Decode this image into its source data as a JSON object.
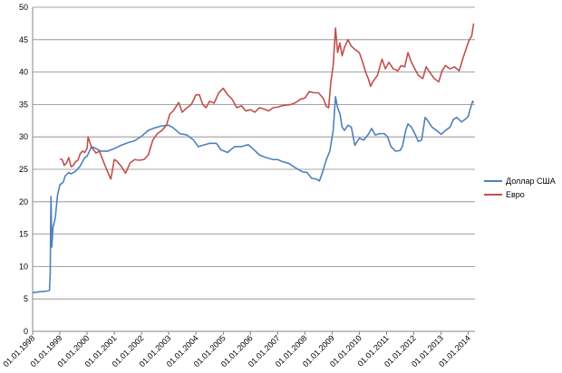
{
  "chart_data": {
    "type": "line",
    "title": "",
    "xlabel": "",
    "ylabel": "",
    "ylim": [
      0,
      50
    ],
    "yticks": [
      0,
      5,
      10,
      15,
      20,
      25,
      30,
      35,
      40,
      45,
      50
    ],
    "xlim": [
      "1998-01-01",
      "2014-04-01"
    ],
    "xtick_labels": [
      "01.01.1998",
      "01.01.1999",
      "01.01.2000",
      "01.01.2001",
      "01.01.2002",
      "01.01.2003",
      "01.01.2004",
      "01.01.2005",
      "01.01.2006",
      "01.01.2007",
      "01.01.2008",
      "01.01.2009",
      "01.01.2010",
      "01.01.2011",
      "01.01.2012",
      "01.01.2013",
      "01.01.2014"
    ],
    "grid": "horizontal major",
    "legend_position": "right",
    "series": [
      {
        "name": "Доллар США",
        "color": "#4f81bd",
        "points": [
          [
            "1998-01-01",
            5.96
          ],
          [
            "1998-04-01",
            6.1
          ],
          [
            "1998-07-01",
            6.2
          ],
          [
            "1998-08-15",
            6.3
          ],
          [
            "1998-08-25",
            9.0
          ],
          [
            "1998-08-31",
            17.0
          ],
          [
            "1998-09-05",
            20.8
          ],
          [
            "1998-09-15",
            13.0
          ],
          [
            "1998-10-01",
            16.0
          ],
          [
            "1998-11-01",
            17.5
          ],
          [
            "1998-12-01",
            21.0
          ],
          [
            "1999-01-01",
            22.6
          ],
          [
            "1999-02-15",
            23.0
          ],
          [
            "1999-03-15",
            24.0
          ],
          [
            "1999-05-01",
            24.5
          ],
          [
            "1999-06-01",
            24.3
          ],
          [
            "1999-08-01",
            24.7
          ],
          [
            "1999-10-01",
            25.5
          ],
          [
            "1999-12-01",
            26.8
          ],
          [
            "2000-01-01",
            27.0
          ],
          [
            "2000-03-01",
            28.5
          ],
          [
            "2000-05-01",
            28.2
          ],
          [
            "2000-07-01",
            27.8
          ],
          [
            "2000-10-01",
            27.8
          ],
          [
            "2001-01-01",
            28.2
          ],
          [
            "2001-04-01",
            28.7
          ],
          [
            "2001-07-01",
            29.1
          ],
          [
            "2001-10-01",
            29.4
          ],
          [
            "2002-01-01",
            30.1
          ],
          [
            "2002-04-01",
            31.0
          ],
          [
            "2002-07-01",
            31.4
          ],
          [
            "2002-10-01",
            31.7
          ],
          [
            "2003-01-01",
            31.8
          ],
          [
            "2003-03-01",
            31.4
          ],
          [
            "2003-06-01",
            30.5
          ],
          [
            "2003-09-01",
            30.3
          ],
          [
            "2003-12-01",
            29.5
          ],
          [
            "2004-02-01",
            28.5
          ],
          [
            "2004-04-01",
            28.7
          ],
          [
            "2004-07-01",
            29.0
          ],
          [
            "2004-10-01",
            29.0
          ],
          [
            "2004-12-01",
            28.0
          ],
          [
            "2005-03-01",
            27.6
          ],
          [
            "2005-06-01",
            28.5
          ],
          [
            "2005-09-01",
            28.5
          ],
          [
            "2005-12-01",
            28.8
          ],
          [
            "2006-02-01",
            28.2
          ],
          [
            "2006-05-01",
            27.2
          ],
          [
            "2006-08-01",
            26.8
          ],
          [
            "2006-11-01",
            26.5
          ],
          [
            "2007-01-01",
            26.5
          ],
          [
            "2007-03-01",
            26.2
          ],
          [
            "2007-06-01",
            25.9
          ],
          [
            "2007-09-01",
            25.2
          ],
          [
            "2007-12-01",
            24.6
          ],
          [
            "2008-02-01",
            24.5
          ],
          [
            "2008-04-01",
            23.6
          ],
          [
            "2008-06-01",
            23.5
          ],
          [
            "2008-07-15",
            23.2
          ],
          [
            "2008-09-01",
            24.8
          ],
          [
            "2008-10-15",
            26.5
          ],
          [
            "2008-12-01",
            27.8
          ],
          [
            "2009-01-15",
            31.0
          ],
          [
            "2009-02-15",
            36.2
          ],
          [
            "2009-03-15",
            34.5
          ],
          [
            "2009-04-15",
            33.6
          ],
          [
            "2009-05-15",
            31.5
          ],
          [
            "2009-06-15",
            31.0
          ],
          [
            "2009-08-01",
            31.8
          ],
          [
            "2009-09-15",
            31.5
          ],
          [
            "2009-11-01",
            28.7
          ],
          [
            "2010-01-01",
            29.8
          ],
          [
            "2010-03-01",
            29.5
          ],
          [
            "2010-05-01",
            30.4
          ],
          [
            "2010-06-15",
            31.3
          ],
          [
            "2010-08-01",
            30.3
          ],
          [
            "2010-10-01",
            30.5
          ],
          [
            "2010-12-01",
            30.5
          ],
          [
            "2011-01-15",
            30.0
          ],
          [
            "2011-03-01",
            28.5
          ],
          [
            "2011-05-01",
            27.8
          ],
          [
            "2011-07-01",
            27.9
          ],
          [
            "2011-08-01",
            28.5
          ],
          [
            "2011-09-15",
            31.0
          ],
          [
            "2011-10-15",
            32.0
          ],
          [
            "2011-12-01",
            31.5
          ],
          [
            "2012-01-15",
            30.5
          ],
          [
            "2012-03-01",
            29.3
          ],
          [
            "2012-04-15",
            29.5
          ],
          [
            "2012-06-01",
            33.0
          ],
          [
            "2012-07-01",
            32.6
          ],
          [
            "2012-09-01",
            31.5
          ],
          [
            "2012-11-01",
            31.0
          ],
          [
            "2013-01-01",
            30.4
          ],
          [
            "2013-03-01",
            31.0
          ],
          [
            "2013-05-01",
            31.5
          ],
          [
            "2013-06-15",
            32.7
          ],
          [
            "2013-08-01",
            33.0
          ],
          [
            "2013-10-01",
            32.3
          ],
          [
            "2013-12-01",
            32.8
          ],
          [
            "2014-01-01",
            33.2
          ],
          [
            "2014-02-01",
            34.5
          ],
          [
            "2014-03-01",
            35.5
          ],
          [
            "2014-03-15",
            35.3
          ]
        ]
      },
      {
        "name": "Евро",
        "color": "#c0504d",
        "points": [
          [
            "1999-01-01",
            26.6
          ],
          [
            "1999-02-01",
            26.5
          ],
          [
            "1999-03-01",
            25.6
          ],
          [
            "1999-04-01",
            26.0
          ],
          [
            "1999-05-01",
            26.8
          ],
          [
            "1999-06-01",
            25.4
          ],
          [
            "1999-07-01",
            25.6
          ],
          [
            "1999-08-01",
            26.2
          ],
          [
            "1999-09-01",
            26.4
          ],
          [
            "1999-10-01",
            27.4
          ],
          [
            "1999-11-01",
            27.8
          ],
          [
            "1999-12-01",
            27.6
          ],
          [
            "2000-01-01",
            28.2
          ],
          [
            "2000-01-15",
            30.0
          ],
          [
            "2000-03-01",
            28.4
          ],
          [
            "2000-05-01",
            27.5
          ],
          [
            "2000-06-15",
            27.8
          ],
          [
            "2000-09-01",
            25.5
          ],
          [
            "2000-10-15",
            24.3
          ],
          [
            "2000-11-15",
            23.5
          ],
          [
            "2001-01-01",
            26.5
          ],
          [
            "2001-02-01",
            26.3
          ],
          [
            "2001-04-01",
            25.5
          ],
          [
            "2001-06-01",
            24.4
          ],
          [
            "2001-08-01",
            26.0
          ],
          [
            "2001-10-01",
            26.5
          ],
          [
            "2001-12-01",
            26.4
          ],
          [
            "2002-02-01",
            26.5
          ],
          [
            "2002-04-01",
            27.2
          ],
          [
            "2002-06-01",
            29.5
          ],
          [
            "2002-08-01",
            30.5
          ],
          [
            "2002-10-01",
            31.0
          ],
          [
            "2002-12-01",
            31.8
          ],
          [
            "2003-01-15",
            33.5
          ],
          [
            "2003-03-01",
            34.0
          ],
          [
            "2003-05-15",
            35.3
          ],
          [
            "2003-07-01",
            33.8
          ],
          [
            "2003-09-01",
            34.5
          ],
          [
            "2003-11-01",
            35.0
          ],
          [
            "2004-01-01",
            36.5
          ],
          [
            "2004-02-15",
            36.5
          ],
          [
            "2004-04-01",
            35.0
          ],
          [
            "2004-05-15",
            34.5
          ],
          [
            "2004-07-01",
            35.5
          ],
          [
            "2004-09-01",
            35.2
          ],
          [
            "2004-11-01",
            36.8
          ],
          [
            "2005-01-01",
            37.5
          ],
          [
            "2005-03-01",
            36.5
          ],
          [
            "2005-05-01",
            35.8
          ],
          [
            "2005-07-01",
            34.5
          ],
          [
            "2005-09-01",
            34.8
          ],
          [
            "2005-11-01",
            34.0
          ],
          [
            "2006-01-01",
            34.2
          ],
          [
            "2006-03-01",
            33.8
          ],
          [
            "2006-05-01",
            34.5
          ],
          [
            "2006-07-01",
            34.3
          ],
          [
            "2006-09-01",
            34.0
          ],
          [
            "2006-11-01",
            34.5
          ],
          [
            "2007-01-01",
            34.6
          ],
          [
            "2007-03-01",
            34.8
          ],
          [
            "2007-05-01",
            34.9
          ],
          [
            "2007-07-01",
            35.0
          ],
          [
            "2007-09-01",
            35.3
          ],
          [
            "2007-11-01",
            35.8
          ],
          [
            "2008-01-01",
            36.0
          ],
          [
            "2008-03-01",
            37.0
          ],
          [
            "2008-05-01",
            36.8
          ],
          [
            "2008-07-01",
            36.8
          ],
          [
            "2008-09-01",
            36.0
          ],
          [
            "2008-10-15",
            34.7
          ],
          [
            "2008-11-15",
            34.5
          ],
          [
            "2008-12-15",
            38.5
          ],
          [
            "2009-01-15",
            41.0
          ],
          [
            "2009-02-15",
            46.8
          ],
          [
            "2009-03-15",
            43.0
          ],
          [
            "2009-04-15",
            44.5
          ],
          [
            "2009-05-15",
            42.5
          ],
          [
            "2009-06-15",
            43.8
          ],
          [
            "2009-08-01",
            45.0
          ],
          [
            "2009-09-15",
            44.0
          ],
          [
            "2009-11-01",
            43.5
          ],
          [
            "2010-01-01",
            43.0
          ],
          [
            "2010-02-15",
            41.5
          ],
          [
            "2010-04-01",
            39.8
          ],
          [
            "2010-05-01",
            39.0
          ],
          [
            "2010-06-01",
            37.8
          ],
          [
            "2010-07-01",
            38.5
          ],
          [
            "2010-09-01",
            39.5
          ],
          [
            "2010-11-01",
            42.0
          ],
          [
            "2010-12-15",
            40.5
          ],
          [
            "2011-02-01",
            41.5
          ],
          [
            "2011-04-01",
            40.5
          ],
          [
            "2011-06-01",
            40.2
          ],
          [
            "2011-07-15",
            41.0
          ],
          [
            "2011-09-01",
            40.8
          ],
          [
            "2011-10-15",
            43.0
          ],
          [
            "2011-12-01",
            41.5
          ],
          [
            "2012-01-15",
            40.5
          ],
          [
            "2012-03-01",
            39.5
          ],
          [
            "2012-05-01",
            39.0
          ],
          [
            "2012-06-15",
            40.8
          ],
          [
            "2012-08-01",
            40.0
          ],
          [
            "2012-10-01",
            39.0
          ],
          [
            "2012-12-01",
            38.5
          ],
          [
            "2013-01-15",
            40.2
          ],
          [
            "2013-03-01",
            41.0
          ],
          [
            "2013-05-01",
            40.5
          ],
          [
            "2013-07-01",
            40.8
          ],
          [
            "2013-09-01",
            40.2
          ],
          [
            "2013-11-01",
            42.5
          ],
          [
            "2013-12-15",
            44.0
          ],
          [
            "2014-01-15",
            45.0
          ],
          [
            "2014-02-15",
            45.5
          ],
          [
            "2014-03-01",
            46.5
          ],
          [
            "2014-03-15",
            47.5
          ]
        ]
      }
    ]
  }
}
